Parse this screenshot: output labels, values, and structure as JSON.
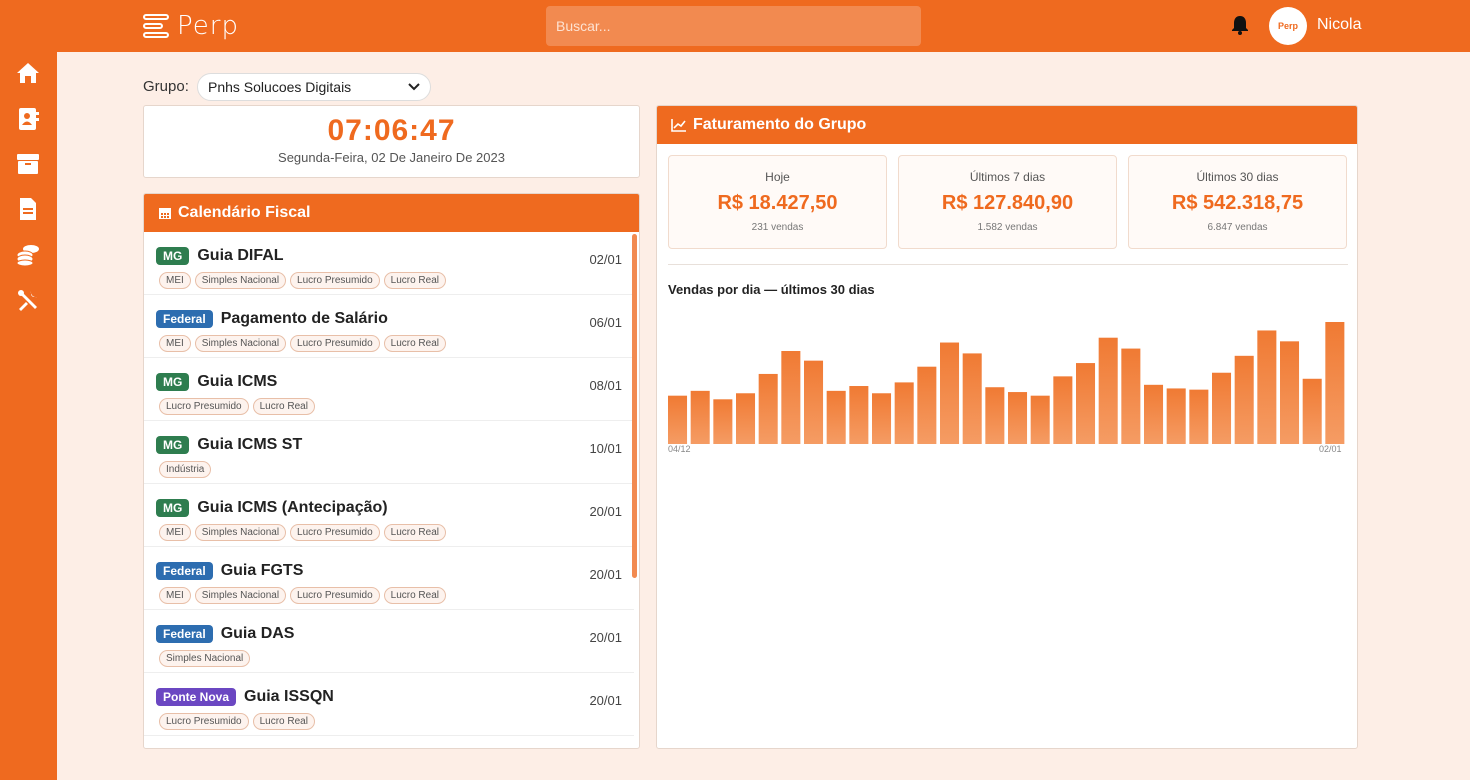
{
  "app": {
    "logo_text": "Perp",
    "username": "Nicola",
    "avatar_text": "Perp"
  },
  "search": {
    "placeholder": "Buscar..."
  },
  "sidebar": {
    "items": [
      "home-icon",
      "contacts-icon",
      "box-icon",
      "document-icon",
      "coins-icon",
      "tools-icon"
    ]
  },
  "grupo": {
    "label": "Grupo:",
    "selected": "Pnhs Solucoes Digitais"
  },
  "clock": {
    "time": "07:06:47",
    "date": "Segunda-Feira, 02 De Janeiro De 2023"
  },
  "calendar": {
    "title": "Calendário Fiscal",
    "items": [
      {
        "badge": "MG",
        "badge_color": "#2e7d4f",
        "title": "Guia DIFAL",
        "date": "02/01",
        "tags": [
          "MEI",
          "Simples Nacional",
          "Lucro Presumido",
          "Lucro Real"
        ]
      },
      {
        "badge": "Federal",
        "badge_color": "#2d6db0",
        "title": "Pagamento de Salário",
        "date": "06/01",
        "tags": [
          "MEI",
          "Simples Nacional",
          "Lucro Presumido",
          "Lucro Real"
        ]
      },
      {
        "badge": "MG",
        "badge_color": "#2e7d4f",
        "title": "Guia ICMS",
        "date": "08/01",
        "tags": [
          "Lucro Presumido",
          "Lucro Real"
        ]
      },
      {
        "badge": "MG",
        "badge_color": "#2e7d4f",
        "title": "Guia ICMS ST",
        "date": "10/01",
        "tags": [
          "Indústria"
        ]
      },
      {
        "badge": "MG",
        "badge_color": "#2e7d4f",
        "title": "Guia ICMS (Antecipação)",
        "date": "20/01",
        "tags": [
          "MEI",
          "Simples Nacional",
          "Lucro Presumido",
          "Lucro Real"
        ]
      },
      {
        "badge": "Federal",
        "badge_color": "#2d6db0",
        "title": "Guia FGTS",
        "date": "20/01",
        "tags": [
          "MEI",
          "Simples Nacional",
          "Lucro Presumido",
          "Lucro Real"
        ]
      },
      {
        "badge": "Federal",
        "badge_color": "#2d6db0",
        "title": "Guia DAS",
        "date": "20/01",
        "tags": [
          "Simples Nacional"
        ]
      },
      {
        "badge": "Ponte Nova",
        "badge_color": "#6b47c2",
        "title": "Guia ISSQN",
        "date": "20/01",
        "tags": [
          "Lucro Presumido",
          "Lucro Real"
        ]
      }
    ]
  },
  "faturamento": {
    "title": "Faturamento do Grupo",
    "stats": [
      {
        "label": "Hoje",
        "value": "R$ 18.427,50",
        "sub": "231 vendas"
      },
      {
        "label": "Últimos 7 dias",
        "value": "R$ 127.840,90",
        "sub": "1.582 vendas"
      },
      {
        "label": "Últimos 30 dias",
        "value": "R$ 542.318,75",
        "sub": "6.847 vendas"
      }
    ],
    "chart_title": "Vendas por dia — últimos 30 dias",
    "x_start": "04/12",
    "x_end": "02/01"
  },
  "chart_data": {
    "type": "bar",
    "title": "Vendas por dia — últimos 30 dias",
    "x_start_label": "04/12",
    "x_end_label": "02/01",
    "relative_scale_note": "no y-axis shown; relative heights",
    "values": [
      40,
      44,
      37,
      42,
      58,
      77,
      69,
      44,
      48,
      42,
      51,
      64,
      84,
      75,
      47,
      43,
      40,
      56,
      67,
      88,
      79,
      49,
      46,
      45,
      59,
      73,
      94,
      85,
      54,
      101
    ],
    "ylim": [
      0,
      101
    ],
    "color": "#f07a33"
  },
  "colors": {
    "accent": "#ef6a1f",
    "background": "#fdeee6"
  }
}
